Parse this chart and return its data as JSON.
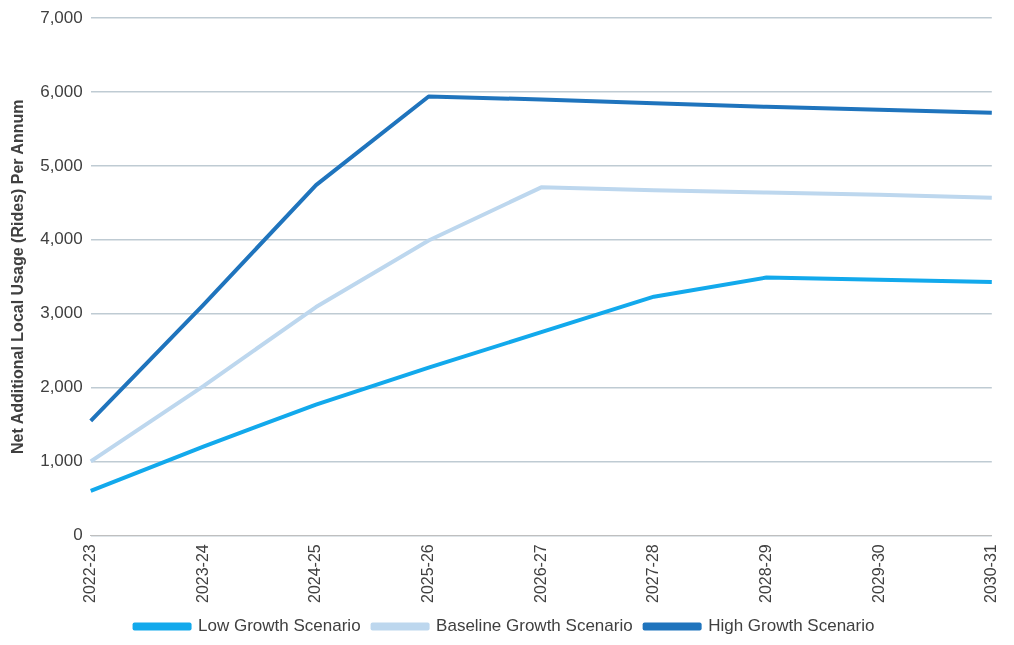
{
  "chart_data": {
    "type": "line",
    "ylabel": "Net Additional Local Usage (Rides) Per Annum",
    "categories": [
      "2022-23",
      "2023-24",
      "2024-25",
      "2025-26",
      "2026-27",
      "2027-28",
      "2028-29",
      "2029-30",
      "2030-31"
    ],
    "series": [
      {
        "name": "Low Growth Scenario",
        "color": "#12a9ec",
        "values": [
          600,
          1200,
          1770,
          2270,
          2750,
          3230,
          3490,
          3460,
          3430
        ]
      },
      {
        "name": "Baseline Growth Scenario",
        "color": "#bdd7ee",
        "values": [
          1000,
          2020,
          3090,
          3990,
          4710,
          4670,
          4640,
          4610,
          4570
        ]
      },
      {
        "name": "High Growth Scenario",
        "color": "#1f74bd",
        "values": [
          1550,
          3120,
          4740,
          5940,
          5900,
          5850,
          5800,
          5760,
          5720
        ]
      }
    ],
    "ylim": [
      0,
      7000
    ],
    "yticks": [
      {
        "value": 0,
        "label": "0"
      },
      {
        "value": 1000,
        "label": "1,000"
      },
      {
        "value": 2000,
        "label": "2,000"
      },
      {
        "value": 3000,
        "label": "3,000"
      },
      {
        "value": 4000,
        "label": "4,000"
      },
      {
        "value": 5000,
        "label": "5,000"
      },
      {
        "value": 6000,
        "label": "6,000"
      },
      {
        "value": 7000,
        "label": "7,000"
      }
    ],
    "grid": "y",
    "legend": "bottom",
    "marker": "none",
    "line_style": "solid"
  }
}
